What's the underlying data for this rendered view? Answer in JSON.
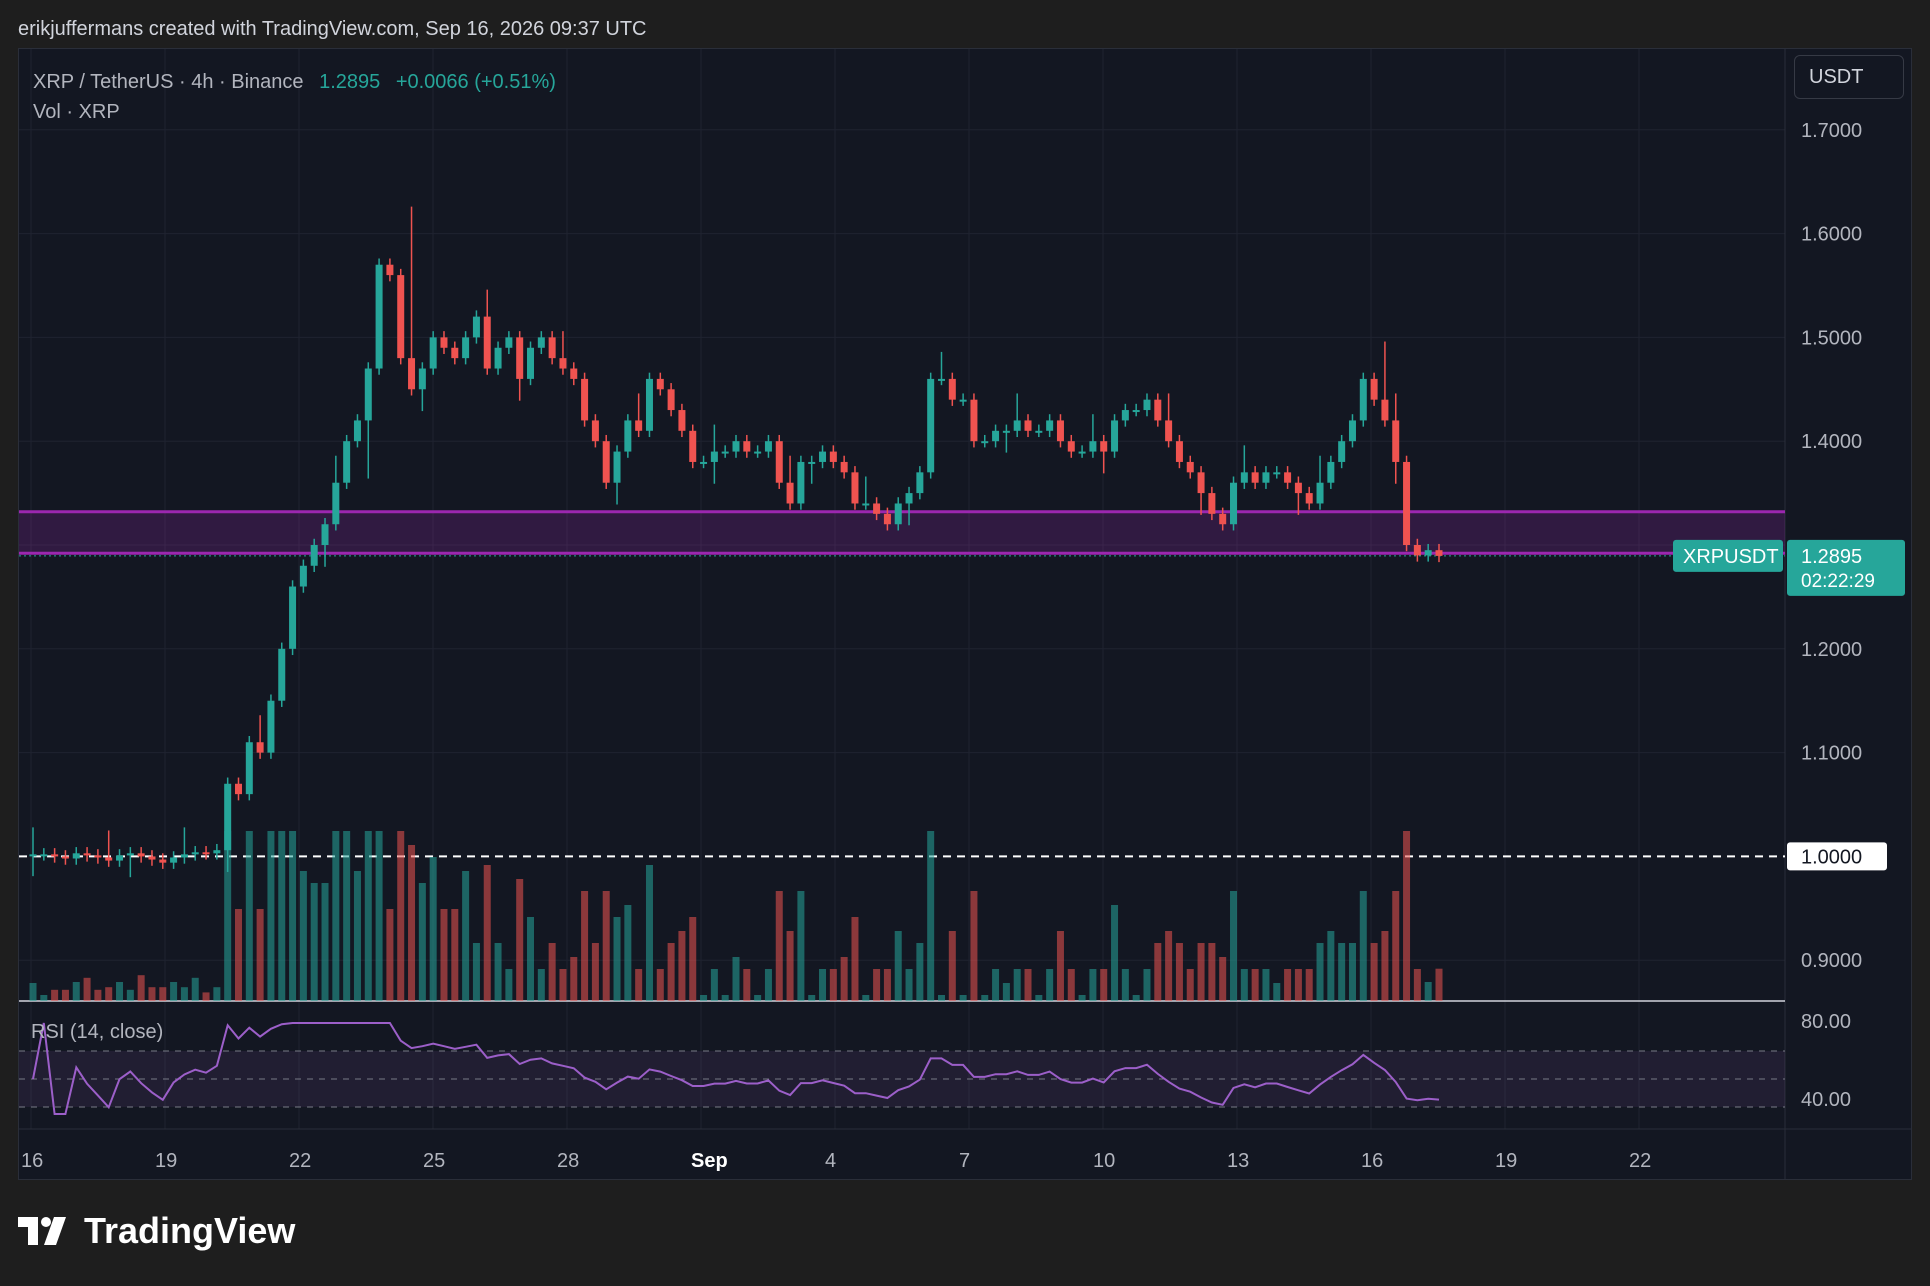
{
  "attribution": "erikjuffermans created with TradingView.com, Sep 16, 2026 09:37 UTC",
  "legend": {
    "symbol": "XRP / TetherUS · 4h · Binance",
    "price": "1.2895",
    "change": "+0.0066 (+0.51%)",
    "volume": "Vol · XRP"
  },
  "currency": "USDT",
  "rsi_label": "RSI (14, close)",
  "price_tag": {
    "symbol": "XRPUSDT",
    "price": "1.2895",
    "countdown": "02:22:29"
  },
  "dashed_level_label": "1.0000",
  "brand": "TradingView",
  "colors": {
    "up": "#26a69a",
    "down": "#ef5350",
    "zone": "#9c27b0",
    "rsi": "#9c5fc9",
    "background": "#131722"
  },
  "chart_data": {
    "type": "candlestick",
    "timeframe": "4h",
    "price_axis": {
      "ticks": [
        "1.7000",
        "1.6000",
        "1.5000",
        "1.4000",
        "1.2000",
        "1.1000",
        "0.9000"
      ],
      "ylim": [
        0.88,
        1.72
      ]
    },
    "x_axis": {
      "ticks": [
        "16",
        "19",
        "22",
        "25",
        "28",
        "Sep",
        "4",
        "7",
        "10",
        "13",
        "16",
        "19",
        "22"
      ]
    },
    "rsi_axis": {
      "ticks": [
        "80.00",
        "40.00"
      ]
    },
    "support_zone": [
      1.292,
      1.332
    ],
    "dashed_level": 1.0,
    "last_price": 1.2895,
    "candles_close_approx": [
      1.002,
      1.002,
      1.0,
      0.998,
      1.003,
      1.001,
      0.999,
      0.996,
      1.001,
      1.003,
      1.0,
      0.997,
      0.994,
      0.999,
      1.002,
      1.004,
      1.003,
      1.006,
      1.07,
      1.06,
      1.11,
      1.1,
      1.15,
      1.2,
      1.26,
      1.28,
      1.3,
      1.32,
      1.36,
      1.4,
      1.42,
      1.47,
      1.57,
      1.56,
      1.48,
      1.45,
      1.47,
      1.5,
      1.49,
      1.48,
      1.5,
      1.52,
      1.47,
      1.49,
      1.5,
      1.46,
      1.49,
      1.5,
      1.48,
      1.47,
      1.46,
      1.42,
      1.4,
      1.36,
      1.39,
      1.42,
      1.41,
      1.46,
      1.45,
      1.43,
      1.41,
      1.38,
      1.38,
      1.39,
      1.39,
      1.4,
      1.39,
      1.39,
      1.4,
      1.36,
      1.34,
      1.38,
      1.38,
      1.39,
      1.38,
      1.37,
      1.34,
      1.34,
      1.33,
      1.32,
      1.34,
      1.35,
      1.37,
      1.46,
      1.46,
      1.44,
      1.44,
      1.4,
      1.4,
      1.41,
      1.41,
      1.42,
      1.41,
      1.41,
      1.42,
      1.4,
      1.39,
      1.39,
      1.4,
      1.39,
      1.42,
      1.43,
      1.43,
      1.44,
      1.42,
      1.4,
      1.38,
      1.37,
      1.35,
      1.33,
      1.32,
      1.36,
      1.37,
      1.36,
      1.37,
      1.37,
      1.36,
      1.35,
      1.34,
      1.36,
      1.38,
      1.4,
      1.42,
      1.46,
      1.44,
      1.42,
      1.38,
      1.3,
      1.29,
      1.295,
      1.2895
    ]
  }
}
